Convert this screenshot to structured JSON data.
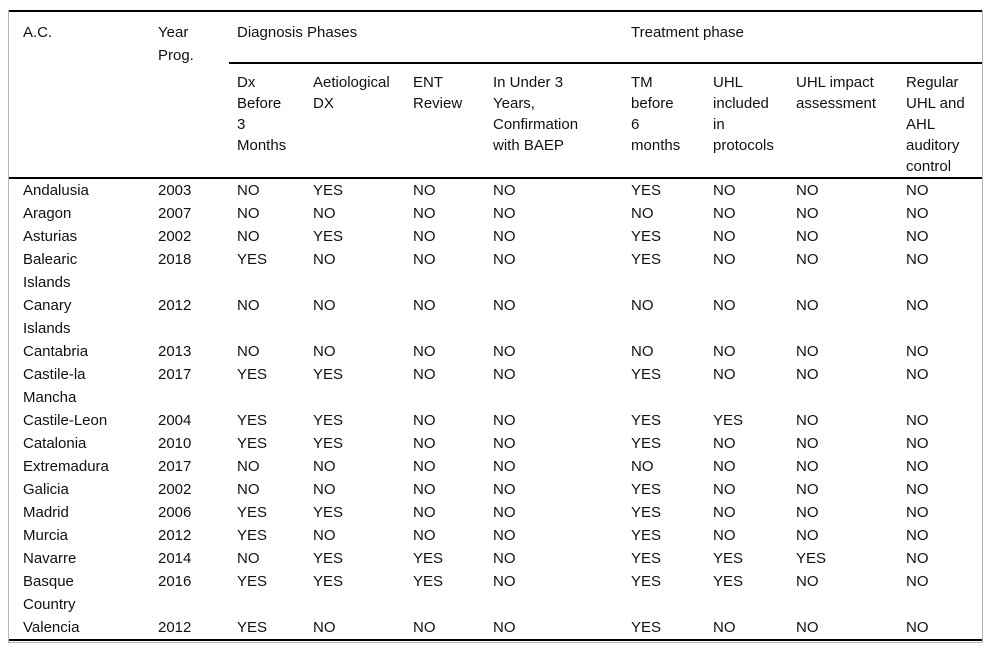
{
  "table": {
    "corner_headers": [
      "A.C.",
      "Year Prog."
    ],
    "group_headers": [
      {
        "label": "Diagnosis Phases",
        "span": 4
      },
      {
        "label": "Treatment phase",
        "span": 4
      }
    ],
    "sub_headers": [
      "Dx Before 3 Months",
      "Aetiological DX",
      "ENT Review",
      "In Under 3 Years, Confirmation with BAEP",
      "TM before 6 months",
      "UHL included in protocols",
      "UHL impact assessment",
      "Regular UHL and AHL auditory control"
    ],
    "rows": [
      [
        "Andalusia",
        "2003",
        "NO",
        "YES",
        "NO",
        "NO",
        "YES",
        "NO",
        "NO",
        "NO"
      ],
      [
        "Aragon",
        "2007",
        "NO",
        "NO",
        "NO",
        "NO",
        "NO",
        "NO",
        "NO",
        "NO"
      ],
      [
        "Asturias",
        "2002",
        "NO",
        "YES",
        "NO",
        "NO",
        "YES",
        "NO",
        "NO",
        "NO"
      ],
      [
        "Balearic Islands",
        "2018",
        "YES",
        "NO",
        "NO",
        "NO",
        "YES",
        "NO",
        "NO",
        "NO"
      ],
      [
        "Canary Islands",
        "2012",
        "NO",
        "NO",
        "NO",
        "NO",
        "NO",
        "NO",
        "NO",
        "NO"
      ],
      [
        "Cantabria",
        "2013",
        "NO",
        "NO",
        "NO",
        "NO",
        "NO",
        "NO",
        "NO",
        "NO"
      ],
      [
        "Castile-la Mancha",
        "2017",
        "YES",
        "YES",
        "NO",
        "NO",
        "YES",
        "NO",
        "NO",
        "NO"
      ],
      [
        "Castile-Leon",
        "2004",
        "YES",
        "YES",
        "NO",
        "NO",
        "YES",
        "YES",
        "NO",
        "NO"
      ],
      [
        "Catalonia",
        "2010",
        "YES",
        "YES",
        "NO",
        "NO",
        "YES",
        "NO",
        "NO",
        "NO"
      ],
      [
        "Extremadura",
        "2017",
        "NO",
        "NO",
        "NO",
        "NO",
        "NO",
        "NO",
        "NO",
        "NO"
      ],
      [
        "Galicia",
        "2002",
        "NO",
        "NO",
        "NO",
        "NO",
        "YES",
        "NO",
        "NO",
        "NO"
      ],
      [
        "Madrid",
        "2006",
        "YES",
        "YES",
        "NO",
        "NO",
        "YES",
        "NO",
        "NO",
        "NO"
      ],
      [
        "Murcia",
        "2012",
        "YES",
        "NO",
        "NO",
        "NO",
        "YES",
        "NO",
        "NO",
        "NO"
      ],
      [
        "Navarre",
        "2014",
        "NO",
        "YES",
        "YES",
        "NO",
        "YES",
        "YES",
        "YES",
        "NO"
      ],
      [
        "Basque Country",
        "2016",
        "YES",
        "YES",
        "YES",
        "NO",
        "YES",
        "YES",
        "NO",
        "NO"
      ],
      [
        "Valencia",
        "2012",
        "YES",
        "NO",
        "NO",
        "NO",
        "YES",
        "NO",
        "NO",
        "NO"
      ]
    ]
  },
  "colors": {
    "rule": "#000000",
    "outer_border": "#b5b5b5",
    "text": "#111111",
    "background": "#ffffff"
  }
}
